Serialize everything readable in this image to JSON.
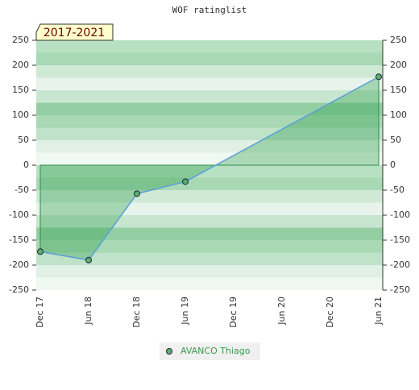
{
  "chart_data": {
    "type": "area",
    "title": "WOF ratinglist",
    "annotation": "2017-2021",
    "xticks": [
      "Dec 17",
      "Jun 18",
      "Dec 18",
      "Jun 19",
      "Dec 19",
      "Jun 20",
      "Dec 20",
      "Jun 21"
    ],
    "series": [
      {
        "name": "AVANCO Thiago",
        "color": "#5aa0d8",
        "marker_color": "#5bb06a",
        "x": [
          "Dec 17",
          "Jun 18",
          "Dec 18",
          "Jun 19",
          "Jun 21"
        ],
        "values": [
          -173,
          -190,
          -57,
          -33,
          177
        ]
      }
    ],
    "ylim": [
      -250,
      250
    ],
    "yticks": [
      -250,
      -200,
      -150,
      -100,
      -50,
      0,
      50,
      100,
      150,
      200,
      250
    ],
    "grid": true
  }
}
